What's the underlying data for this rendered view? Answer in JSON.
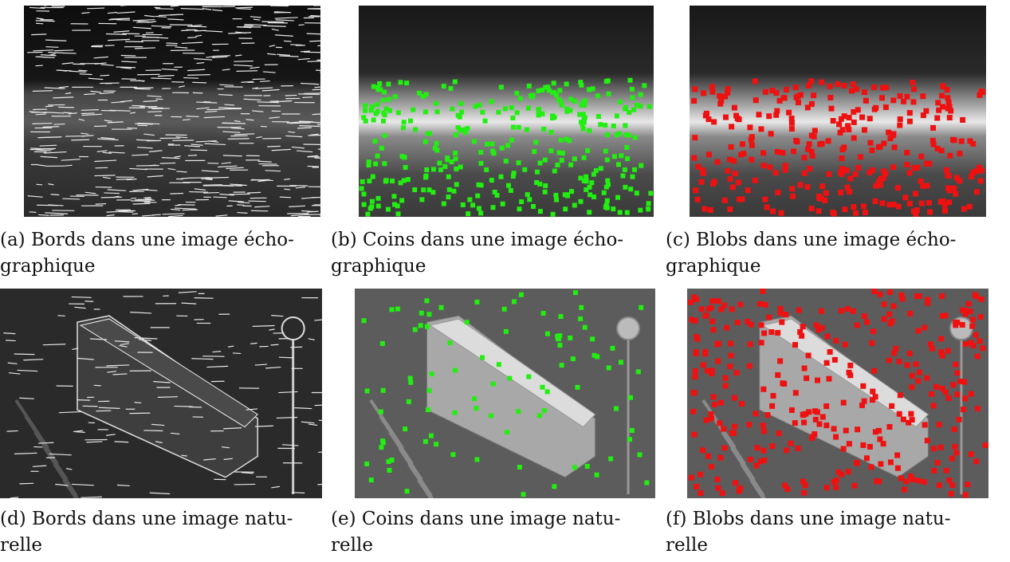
{
  "figure": {
    "panels": [
      {
        "id": "a",
        "caption": "(a) Bords dans une image écho-\ngraphique",
        "feature": "edges",
        "scene": "ultrasound"
      },
      {
        "id": "b",
        "caption": "(b) Coins dans une image écho-\ngraphique",
        "feature": "corners",
        "scene": "ultrasound",
        "marker_color": "#22ee11"
      },
      {
        "id": "c",
        "caption": "(c) Blobs dans une image écho-\ngraphique",
        "feature": "blobs",
        "scene": "ultrasound",
        "marker_color": "#ee1111"
      },
      {
        "id": "d",
        "caption": "(d) Bords dans une image natu-\nrelle",
        "feature": "edges",
        "scene": "natural"
      },
      {
        "id": "e",
        "caption": "(e) Coins dans une image natu-\nrelle",
        "feature": "corners",
        "scene": "natural",
        "marker_color": "#22ee11"
      },
      {
        "id": "f",
        "caption": "(f) Blobs dans une image natu-\nrelle",
        "feature": "blobs",
        "scene": "natural",
        "marker_color": "#ee1111"
      }
    ]
  }
}
